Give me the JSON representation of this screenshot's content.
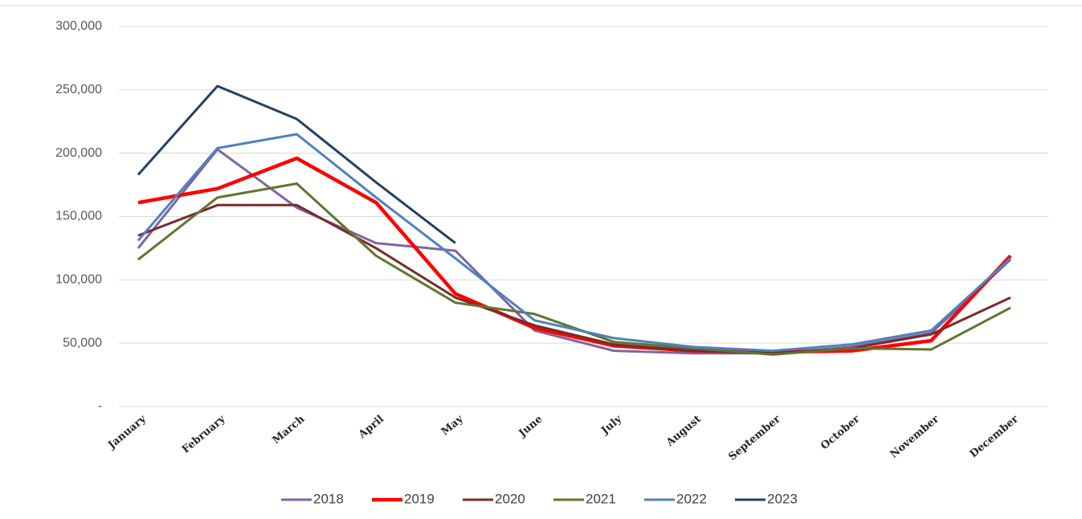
{
  "chart_data": {
    "type": "line",
    "categories": [
      "January",
      "February",
      "March",
      "April",
      "May",
      "June",
      "July",
      "August",
      "September",
      "October",
      "November",
      "December"
    ],
    "series": [
      {
        "name": "2018",
        "color": "#8064a2",
        "line_width": 3,
        "values": [
          125000,
          203000,
          157000,
          129000,
          123000,
          60000,
          44000,
          42000,
          42000,
          47000,
          58000,
          116000
        ]
      },
      {
        "name": "2019",
        "color": "#ff0000",
        "line_width": 4.5,
        "values": [
          161000,
          172000,
          196000,
          161000,
          89000,
          62000,
          48000,
          44000,
          43000,
          44000,
          52000,
          119000
        ]
      },
      {
        "name": "2020",
        "color": "#772c2a",
        "line_width": 3,
        "values": [
          135000,
          159000,
          159000,
          125000,
          86000,
          64000,
          49000,
          44000,
          42000,
          46000,
          57000,
          86000
        ]
      },
      {
        "name": "2021",
        "color": "#5f7530",
        "line_width": 3,
        "values": [
          116000,
          165000,
          176000,
          119000,
          82000,
          73000,
          51000,
          46000,
          41000,
          46000,
          45000,
          78000
        ]
      },
      {
        "name": "2022",
        "color": "#4f81bd",
        "line_width": 3,
        "values": [
          131000,
          204000,
          215000,
          165000,
          117000,
          68000,
          54000,
          47000,
          44000,
          49000,
          60000,
          117000
        ]
      },
      {
        "name": "2023",
        "color": "#254061",
        "line_width": 3,
        "values": [
          183000,
          253000,
          227000,
          177000,
          129000,
          null,
          null,
          null,
          null,
          null,
          null,
          null
        ]
      }
    ],
    "ylim": [
      0,
      300000
    ],
    "yticks": [
      {
        "value": 0,
        "label": "-"
      },
      {
        "value": 50000,
        "label": "50,000"
      },
      {
        "value": 100000,
        "label": "100,000"
      },
      {
        "value": 150000,
        "label": "150,000"
      },
      {
        "value": 200000,
        "label": "200,000"
      },
      {
        "value": 250000,
        "label": "250,000"
      },
      {
        "value": 300000,
        "label": "300,000"
      }
    ],
    "grid": true,
    "legend": "bottom"
  }
}
